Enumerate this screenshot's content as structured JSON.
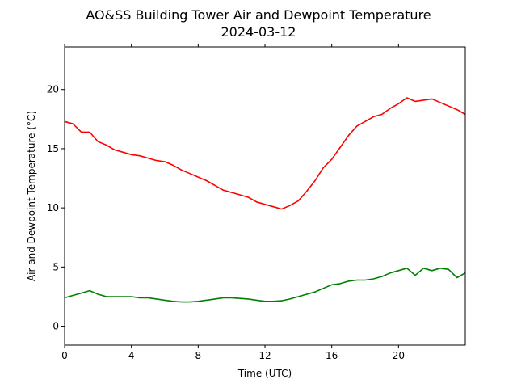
{
  "chart_data": {
    "type": "line",
    "title": "AO&SS Building Tower Air and Dewpoint Temperature",
    "subtitle": "2024-03-12",
    "xlabel": "Time (UTC)",
    "ylabel": "Air and Dewpoint Temperature (°C)",
    "xlim": [
      0,
      24
    ],
    "ylim": [
      -1.6,
      23.6
    ],
    "xticks": [
      0,
      4,
      8,
      12,
      16,
      20
    ],
    "yticks": [
      0,
      5,
      10,
      15,
      20
    ],
    "grid": false,
    "legend": false,
    "series": [
      {
        "color": "#ff0000",
        "x": [
          0,
          0.5,
          1.0,
          1.5,
          2.0,
          2.5,
          3.0,
          3.5,
          4.0,
          4.5,
          5.0,
          5.5,
          6.0,
          6.5,
          7.0,
          7.5,
          8.0,
          8.5,
          9.0,
          9.5,
          10.0,
          10.5,
          11.0,
          11.5,
          12.0,
          12.5,
          13.0,
          13.5,
          14.0,
          14.5,
          15.0,
          15.5,
          16.0,
          16.5,
          17.0,
          17.5,
          18.0,
          18.5,
          19.0,
          19.5,
          20.0,
          20.5,
          21.0,
          21.5,
          22.0,
          22.5,
          23.0,
          23.5,
          24.0
        ],
        "y": [
          17.3,
          17.1,
          16.4,
          16.4,
          15.6,
          15.3,
          14.9,
          14.7,
          14.5,
          14.4,
          14.2,
          14.0,
          13.9,
          13.6,
          13.2,
          12.9,
          12.6,
          12.3,
          11.9,
          11.5,
          11.3,
          11.1,
          10.9,
          10.5,
          10.3,
          10.1,
          9.9,
          10.2,
          10.6,
          11.4,
          12.3,
          13.4,
          14.1,
          15.1,
          16.1,
          16.9,
          17.3,
          17.7,
          17.9,
          18.4,
          18.8,
          19.3,
          19.0,
          19.1,
          19.2,
          18.9,
          18.6,
          18.3,
          17.9
        ]
      },
      {
        "color": "#008000",
        "x": [
          0,
          0.5,
          1.0,
          1.5,
          2.0,
          2.5,
          3.0,
          3.5,
          4.0,
          4.5,
          5.0,
          5.5,
          6.0,
          6.5,
          7.0,
          7.5,
          8.0,
          8.5,
          9.0,
          9.5,
          10.0,
          10.5,
          11.0,
          11.5,
          12.0,
          12.5,
          13.0,
          13.5,
          14.0,
          14.5,
          15.0,
          15.5,
          16.0,
          16.5,
          17.0,
          17.5,
          18.0,
          18.5,
          19.0,
          19.5,
          20.0,
          20.5,
          21.0,
          21.5,
          22.0,
          22.5,
          23.0,
          23.5,
          24.0
        ],
        "y": [
          2.4,
          2.6,
          2.8,
          3.0,
          2.7,
          2.5,
          2.5,
          2.5,
          2.5,
          2.4,
          2.4,
          2.3,
          2.2,
          2.1,
          2.05,
          2.05,
          2.1,
          2.2,
          2.3,
          2.4,
          2.4,
          2.35,
          2.3,
          2.2,
          2.1,
          2.1,
          2.15,
          2.3,
          2.5,
          2.7,
          2.9,
          3.2,
          3.5,
          3.6,
          3.8,
          3.9,
          3.9,
          4.0,
          4.2,
          4.5,
          4.7,
          4.9,
          4.3,
          4.9,
          4.7,
          4.9,
          4.8,
          4.1,
          4.5
        ]
      }
    ]
  }
}
